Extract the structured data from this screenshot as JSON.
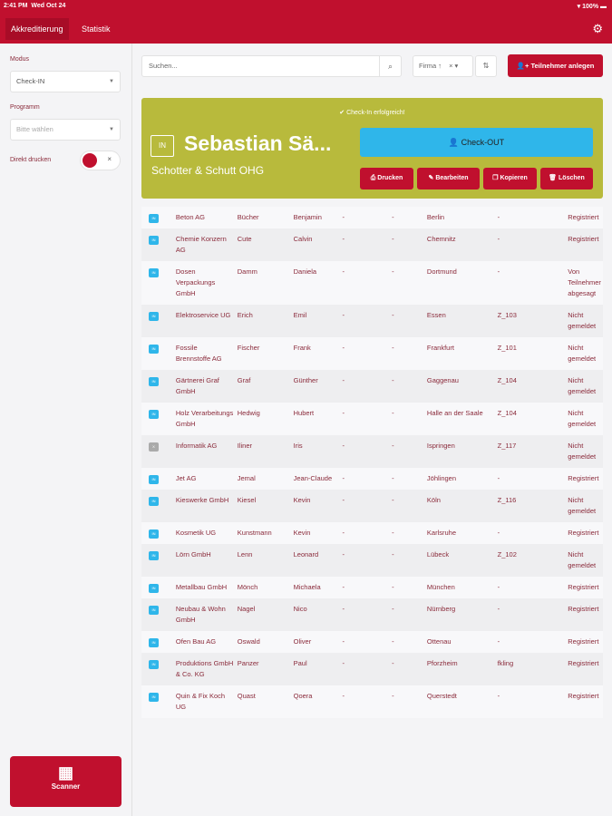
{
  "statusbar": {
    "time": "2:41 PM",
    "date": "Wed Oct 24",
    "battery": "100%"
  },
  "nav": {
    "tabs": [
      {
        "label": "Akkreditierung"
      },
      {
        "label": "Statistik"
      }
    ]
  },
  "sidebar": {
    "modus_label": "Modus",
    "modus_value": "Check-IN",
    "programm_label": "Programm",
    "programm_placeholder": "Bitte wählen",
    "direct_print_label": "Direkt drucken",
    "scanner_label": "Scanner"
  },
  "toolbar": {
    "search_placeholder": "Suchen...",
    "filter_value": "Firma ↑",
    "add_label": "Teilnehmer anlegen"
  },
  "card": {
    "success": "Check-In erfolgreich!",
    "badge": "IN",
    "name": "Sebastian Sä...",
    "company": "Schotter & Schutt OHG",
    "checkout": "Check-OUT",
    "actions": [
      "Drucken",
      "Bearbeiten",
      "Kopieren",
      "Löschen"
    ]
  },
  "accent": "#c0102e",
  "card_color": "#b8ba3c",
  "checkout_color": "#2fb6ea",
  "rows": [
    [
      "IN",
      "Beton AG",
      "Bücher",
      "Benjamin",
      "-",
      "-",
      "Berlin",
      "-",
      "Registriert"
    ],
    [
      "IN",
      "Chemie Konzern AG",
      "Cute",
      "Calvin",
      "-",
      "-",
      "Chemnitz",
      "-",
      "Registriert"
    ],
    [
      "IN",
      "Dosen Verpackungs GmbH",
      "Damm",
      "Daniela",
      "-",
      "-",
      "Dortmund",
      "-",
      "Von Teilnehmer abgesagt"
    ],
    [
      "IN",
      "Elektroservice UG",
      "Erich",
      "Emil",
      "-",
      "-",
      "Essen",
      "Z_103",
      "Nicht gemeldet"
    ],
    [
      "IN",
      "Fossile Brennstoffe AG",
      "Fischer",
      "Frank",
      "-",
      "-",
      "Frankfurt",
      "Z_101",
      "Nicht gemeldet"
    ],
    [
      "IN",
      "Gärtnerei Graf GmbH",
      "Graf",
      "Günther",
      "-",
      "-",
      "Gaggenau",
      "Z_104",
      "Nicht gemeldet"
    ],
    [
      "IN",
      "Holz Verarbeitungs GmbH",
      "Hedwig",
      "Hubert",
      "-",
      "-",
      "Halle an der Saale",
      "Z_104",
      "Nicht gemeldet"
    ],
    [
      "X",
      "Informatik AG",
      "Iliner",
      "Iris",
      "-",
      "-",
      "Ispringen",
      "Z_117",
      "Nicht gemeldet"
    ],
    [
      "IN",
      "Jet AG",
      "Jemal",
      "Jean-Claude",
      "-",
      "-",
      "Jöhlingen",
      "-",
      "Registriert"
    ],
    [
      "IN",
      "Kieswerke GmbH",
      "Kiesel",
      "Kevin",
      "-",
      "-",
      "Köln",
      "Z_116",
      "Nicht gemeldet"
    ],
    [
      "IN",
      "Kosmetik UG",
      "Kunstmann",
      "Kevin",
      "-",
      "-",
      "Karlsruhe",
      "-",
      "Registriert"
    ],
    [
      "IN",
      "Lörn GmbH",
      "Lenn",
      "Leonard",
      "-",
      "-",
      "Lübeck",
      "Z_102",
      "Nicht gemeldet"
    ],
    [
      "IN",
      "Metallbau GmbH",
      "Mönch",
      "Michaela",
      "-",
      "-",
      "München",
      "-",
      "Registriert"
    ],
    [
      "IN",
      "Neubau & Wohn GmbH",
      "Nagel",
      "Nico",
      "-",
      "-",
      "Nürnberg",
      "-",
      "Registriert"
    ],
    [
      "IN",
      "Ofen Bau AG",
      "Oswald",
      "Oliver",
      "-",
      "-",
      "Ottenau",
      "-",
      "Registriert"
    ],
    [
      "IN",
      "Produktions GmbH & Co. KG",
      "Panzer",
      "Paul",
      "-",
      "-",
      "Pforzheim",
      "fkling",
      "Registriert"
    ],
    [
      "IN",
      "Quin & Fix Koch UG",
      "Quast",
      "Qoera",
      "-",
      "-",
      "Querstedt",
      "-",
      "Registriert"
    ]
  ]
}
